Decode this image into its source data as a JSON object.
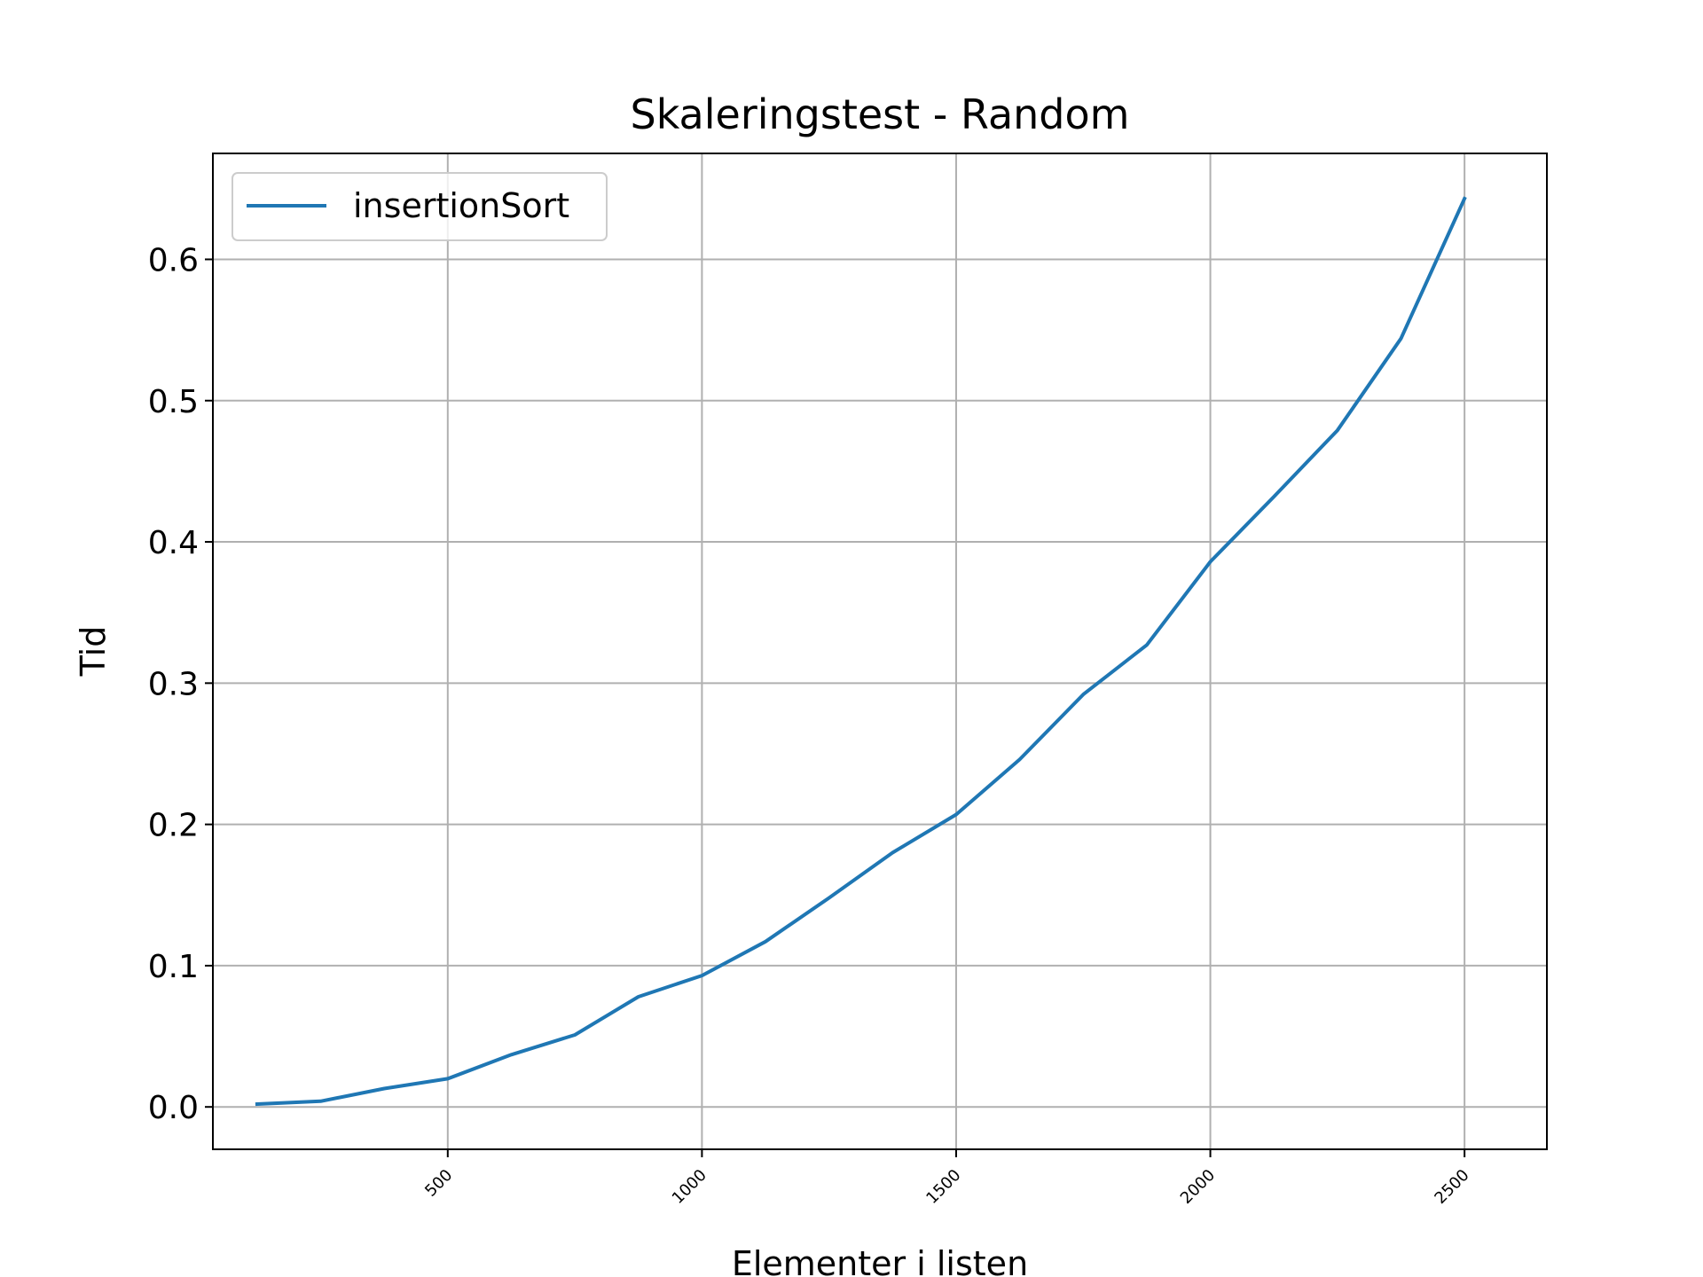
{
  "chart_data": {
    "type": "line",
    "title": "Skaleringstest - Random",
    "xlabel": "Elementer i listen",
    "ylabel": "Tid",
    "xlim": [
      38,
      2662
    ],
    "ylim": [
      -0.03,
      0.675
    ],
    "xticks": [
      500,
      1000,
      1500,
      2000,
      2500
    ],
    "xtick_labels": [
      "500",
      "1000",
      "1500",
      "2000",
      "2500"
    ],
    "yticks": [
      0.0,
      0.1,
      0.2,
      0.3,
      0.4,
      0.5,
      0.6
    ],
    "ytick_labels": [
      "0.0",
      "0.1",
      "0.2",
      "0.3",
      "0.4",
      "0.5",
      "0.6"
    ],
    "grid": true,
    "legend_position": "upper-left",
    "series": [
      {
        "name": "insertionSort",
        "color": "#1f77b4",
        "x": [
          125,
          250,
          375,
          500,
          625,
          750,
          875,
          1000,
          1125,
          1250,
          1375,
          1500,
          1625,
          1750,
          1875,
          2000,
          2125,
          2250,
          2375,
          2500
        ],
        "y": [
          0.002,
          0.004,
          0.013,
          0.02,
          0.037,
          0.051,
          0.078,
          0.093,
          0.117,
          0.148,
          0.18,
          0.207,
          0.246,
          0.292,
          0.327,
          0.386,
          0.432,
          0.479,
          0.544,
          0.643
        ]
      }
    ]
  }
}
